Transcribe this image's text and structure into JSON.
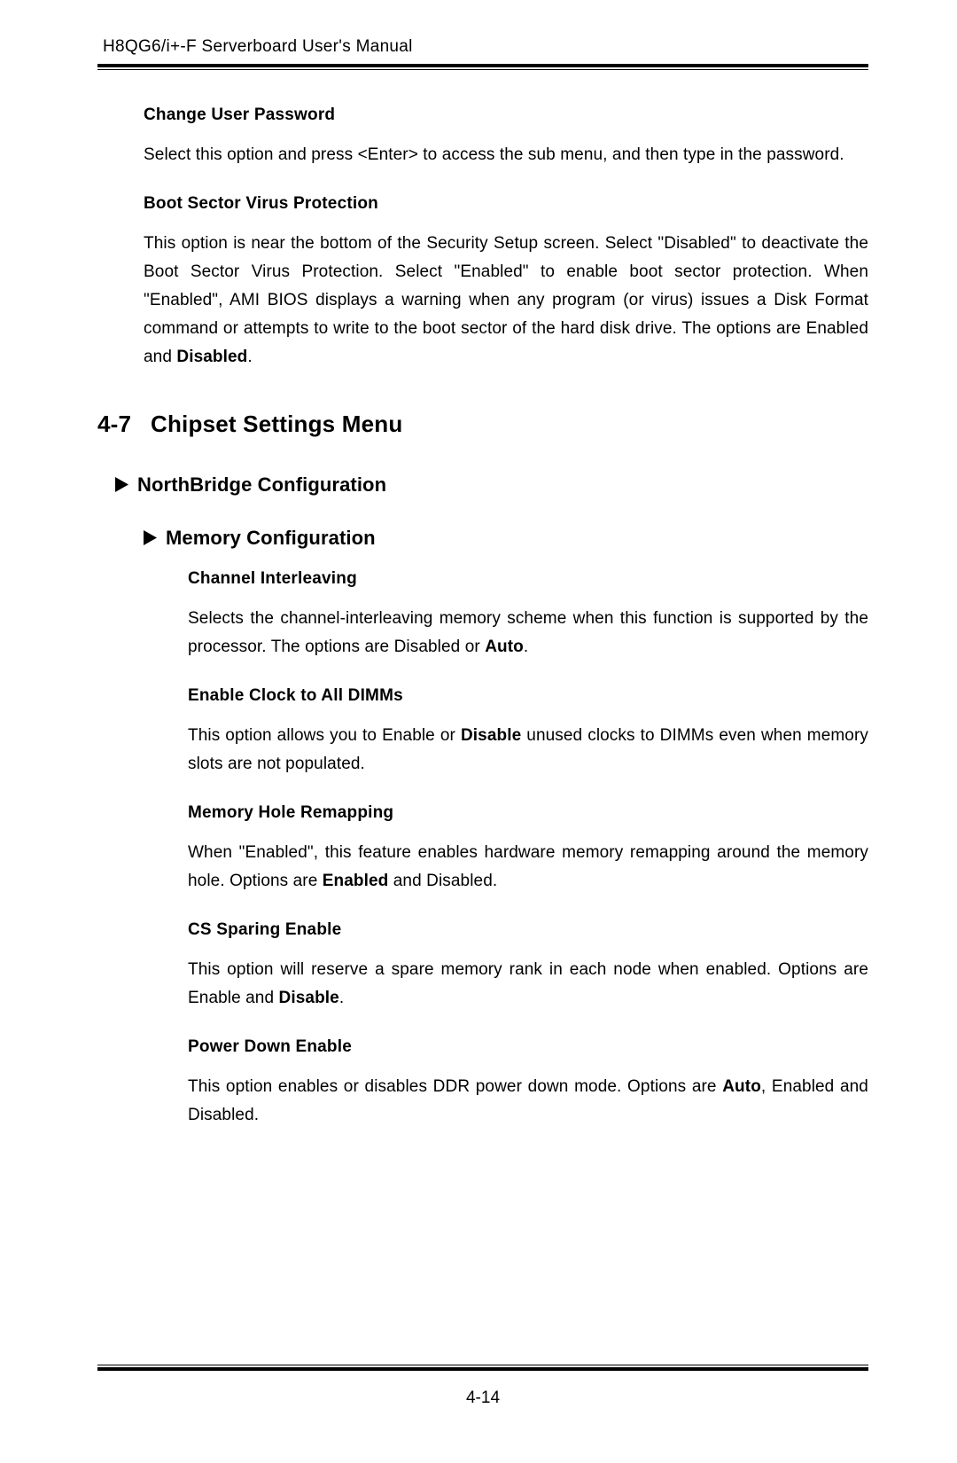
{
  "header": {
    "title": "H8QG6/i+-F Serverboard User's Manual"
  },
  "items_top": [
    {
      "heading": "Change User Password",
      "text": "Select this option and press <Enter> to access the sub menu, and then type in the password."
    },
    {
      "heading": "Boot Sector Virus Protection",
      "text_a": "This option is near the bottom of the Security Setup screen. Select \"Disabled\" to deactivate the Boot Sector Virus Protection. Select \"Enabled\" to enable boot sector protection. When \"Enabled\", AMI BIOS displays a warning when any program (or virus) issues a Disk Format command or attempts to write to the boot sector of the hard disk drive. The options are Enabled and ",
      "text_b": "Disabled",
      "text_c": "."
    }
  ],
  "section": {
    "number": "4-7",
    "title": "Chipset Settings Menu"
  },
  "sub1": {
    "title": "NorthBridge Configuration"
  },
  "sub2": {
    "title": "Memory Configuration"
  },
  "mem_items": [
    {
      "heading": "Channel Interleaving",
      "parts": [
        "Selects the channel-interleaving memory scheme when this function is supported by the processor. The options are Disabled or ",
        "Auto",
        "."
      ]
    },
    {
      "heading": "Enable Clock to All DIMMs",
      "parts": [
        "This option allows you to Enable or ",
        "Disable",
        " unused clocks to DIMMs even when memory slots are not populated."
      ]
    },
    {
      "heading": "Memory Hole Remapping",
      "parts": [
        "When \"Enabled\", this feature enables hardware memory remapping around the memory hole. Options are ",
        "Enabled",
        " and Disabled."
      ]
    },
    {
      "heading": "CS Sparing Enable",
      "parts": [
        "This option will reserve a spare memory rank in each node when enabled. Options are Enable and ",
        "Disable",
        "."
      ]
    },
    {
      "heading": "Power Down Enable",
      "parts": [
        "This option enables or disables DDR power down mode. Options are ",
        "Auto",
        ", Enabled and Disabled."
      ]
    }
  ],
  "footer": {
    "page": "4-14"
  },
  "style": {
    "triangle_fill": "#000000",
    "triangle_w": 15,
    "triangle_h": 17
  }
}
